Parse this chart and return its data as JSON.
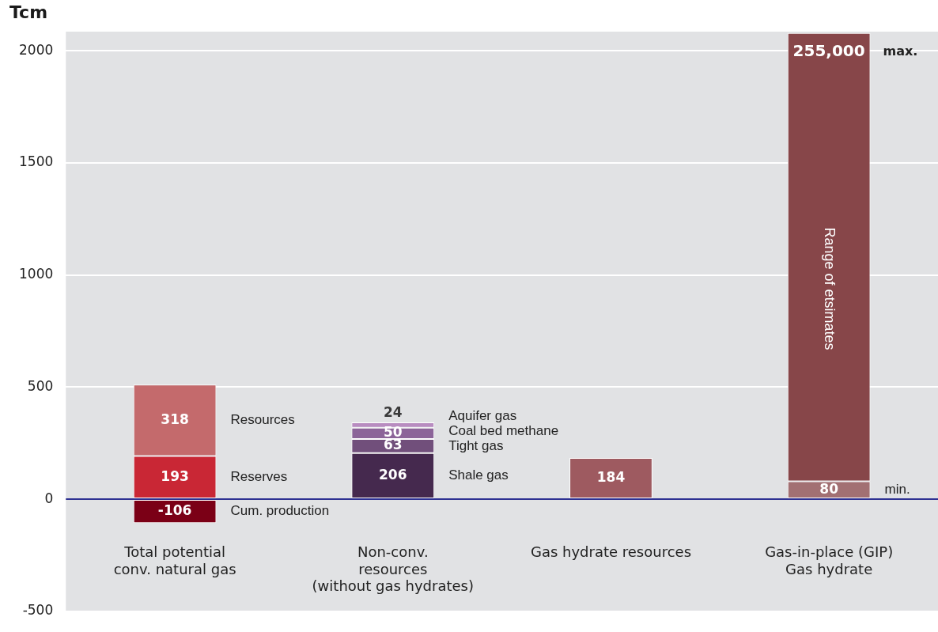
{
  "chart_data": {
    "type": "bar",
    "stacked": true,
    "ylabel": "Tcm",
    "categories": [
      "Total potential\nconv. natural gas",
      "Non-conv.\nresources\n(without gas hydrates)",
      "Gas hydrate resources",
      "Gas-in-place (GIP)\nGas hydrate"
    ],
    "series": [
      {
        "name": "Cum. production",
        "color": "#7b0016",
        "values": [
          -106,
          null,
          null,
          null
        ],
        "value_labels": [
          "-106",
          null,
          null,
          null
        ]
      },
      {
        "name": "Reserves",
        "color": "#c92735",
        "values": [
          193,
          null,
          null,
          null
        ],
        "value_labels": [
          "193",
          null,
          null,
          null
        ]
      },
      {
        "name": "Resources",
        "color": "#c46a6c",
        "values": [
          318,
          null,
          null,
          null
        ],
        "value_labels": [
          "318",
          null,
          null,
          null
        ]
      },
      {
        "name": "Shale gas",
        "color": "#45294e",
        "values": [
          null,
          206,
          null,
          null
        ],
        "value_labels": [
          null,
          "206",
          null,
          null
        ]
      },
      {
        "name": "Tight gas",
        "color": "#714f7b",
        "values": [
          null,
          63,
          null,
          null
        ],
        "value_labels": [
          null,
          "63",
          null,
          null
        ]
      },
      {
        "name": "Coal bed methane",
        "color": "#8c6499",
        "values": [
          null,
          50,
          null,
          null
        ],
        "value_labels": [
          null,
          "50",
          null,
          null
        ]
      },
      {
        "name": "Aquifer gas",
        "color": "#b88cc0",
        "values": [
          null,
          24,
          null,
          null
        ],
        "value_labels": [
          null,
          "24",
          null,
          null
        ]
      },
      {
        "color": "#9e5a60",
        "values": [
          null,
          null,
          184,
          null
        ],
        "value_labels": [
          null,
          null,
          "184",
          null
        ]
      },
      {
        "name": "min.",
        "color": "#a27073",
        "values": [
          null,
          null,
          null,
          80
        ],
        "value_labels": [
          null,
          null,
          null,
          "80"
        ]
      },
      {
        "name": "Range of etsimates",
        "color": "#874649",
        "values": [
          null,
          null,
          null,
          2000
        ],
        "value_labels": [
          null,
          null,
          null,
          null
        ]
      }
    ],
    "annotations": [
      "255,000",
      "max."
    ],
    "ref_lines": [
      {
        "axis": "y",
        "value": 0,
        "color": "#2e3192"
      }
    ],
    "ylim": [
      -500,
      2086
    ],
    "yticks": [
      -500,
      0,
      500,
      1000,
      1500,
      2000
    ],
    "grid": "y",
    "legend": false
  }
}
